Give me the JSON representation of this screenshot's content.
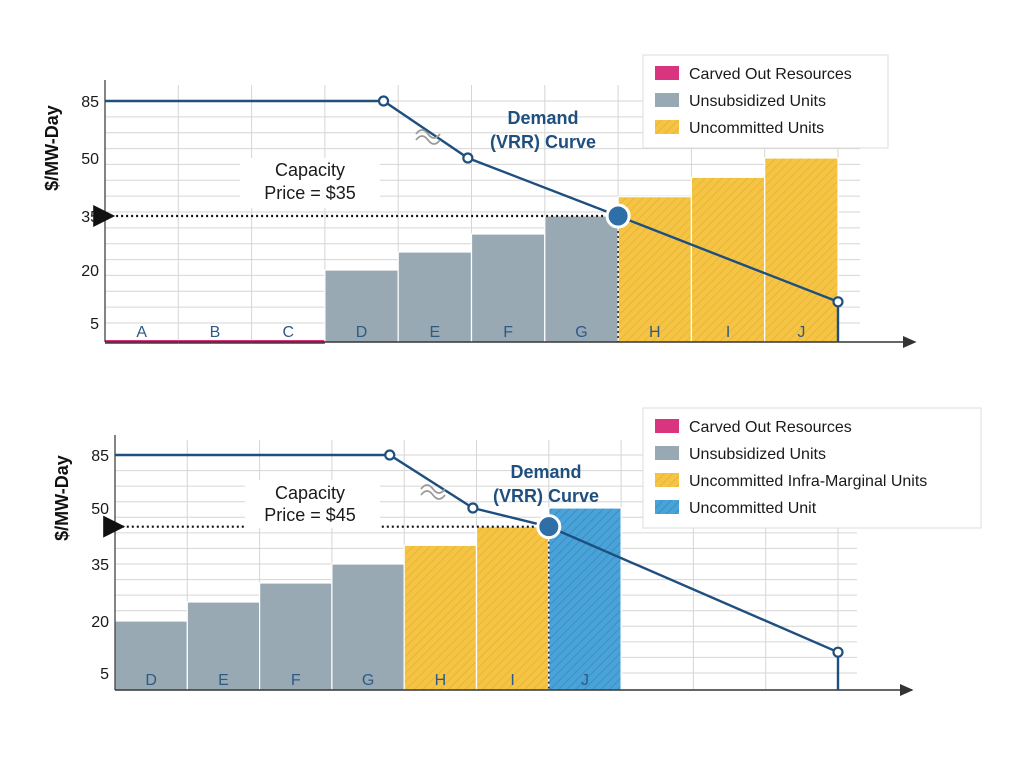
{
  "colors": {
    "carved_out": "#d9357f",
    "unsubsidized": "#98a9b3",
    "uncommitted": "#f5c445",
    "uncommitted_unit": "#4aa3d8",
    "curve": "#1e4f7e",
    "grid": "#d6d6d6"
  },
  "chart_data": [
    {
      "type": "bar",
      "ylabel": "$/MW-Day",
      "yticks": [
        "85",
        "50",
        "35",
        "20",
        "5"
      ],
      "units": [
        {
          "label": "A",
          "value": 0,
          "group": "carved_out"
        },
        {
          "label": "B",
          "value": 0,
          "group": "carved_out"
        },
        {
          "label": "C",
          "value": 0,
          "group": "carved_out"
        },
        {
          "label": "D",
          "value": 20,
          "group": "unsubsidized"
        },
        {
          "label": "E",
          "value": 25,
          "group": "unsubsidized"
        },
        {
          "label": "F",
          "value": 30,
          "group": "unsubsidized"
        },
        {
          "label": "G",
          "value": 35,
          "group": "unsubsidized"
        },
        {
          "label": "H",
          "value": 40,
          "group": "uncommitted"
        },
        {
          "label": "I",
          "value": 45,
          "group": "uncommitted"
        },
        {
          "label": "J",
          "value": 50,
          "group": "uncommitted"
        }
      ],
      "demand_curve": [
        {
          "x": 0,
          "y": 85
        },
        {
          "x": 3.8,
          "y": 85
        },
        {
          "x": 4.95,
          "y": 50
        },
        {
          "x": 7,
          "y": 35
        },
        {
          "x": 10,
          "y": 11
        }
      ],
      "clearing_price": 35,
      "annotation_line1": "Capacity",
      "annotation_line2": "Price = $35",
      "demand_label_line1": "Demand",
      "demand_label_line2": "(VRR) Curve",
      "legend": [
        {
          "label": "Carved Out Resources",
          "group": "carved_out"
        },
        {
          "label": "Unsubsidized Units",
          "group": "unsubsidized"
        },
        {
          "label": "Uncommitted Units",
          "group": "uncommitted"
        }
      ]
    },
    {
      "type": "bar",
      "ylabel": "$/MW-Day",
      "yticks": [
        "85",
        "50",
        "35",
        "20",
        "5"
      ],
      "units": [
        {
          "label": "D",
          "value": 20,
          "group": "unsubsidized"
        },
        {
          "label": "E",
          "value": 25,
          "group": "unsubsidized"
        },
        {
          "label": "F",
          "value": 30,
          "group": "unsubsidized"
        },
        {
          "label": "G",
          "value": 35,
          "group": "unsubsidized"
        },
        {
          "label": "H",
          "value": 40,
          "group": "uncommitted"
        },
        {
          "label": "I",
          "value": 45,
          "group": "uncommitted"
        },
        {
          "label": "J",
          "value": 50,
          "group": "uncommitted_unit"
        }
      ],
      "demand_curve": [
        {
          "x": 0,
          "y": 85
        },
        {
          "x": 3.8,
          "y": 85
        },
        {
          "x": 4.95,
          "y": 50
        },
        {
          "x": 6,
          "y": 45
        },
        {
          "x": 10,
          "y": 11
        }
      ],
      "clearing_price": 45,
      "annotation_line1": "Capacity",
      "annotation_line2": "Price = $45",
      "demand_label_line1": "Demand",
      "demand_label_line2": "(VRR) Curve",
      "legend": [
        {
          "label": "Carved Out Resources",
          "group": "carved_out"
        },
        {
          "label": "Unsubsidized Units",
          "group": "unsubsidized"
        },
        {
          "label": "Uncommitted Infra-Marginal Units",
          "group": "uncommitted"
        },
        {
          "label": "Uncommitted Unit",
          "group": "uncommitted_unit"
        }
      ]
    }
  ]
}
